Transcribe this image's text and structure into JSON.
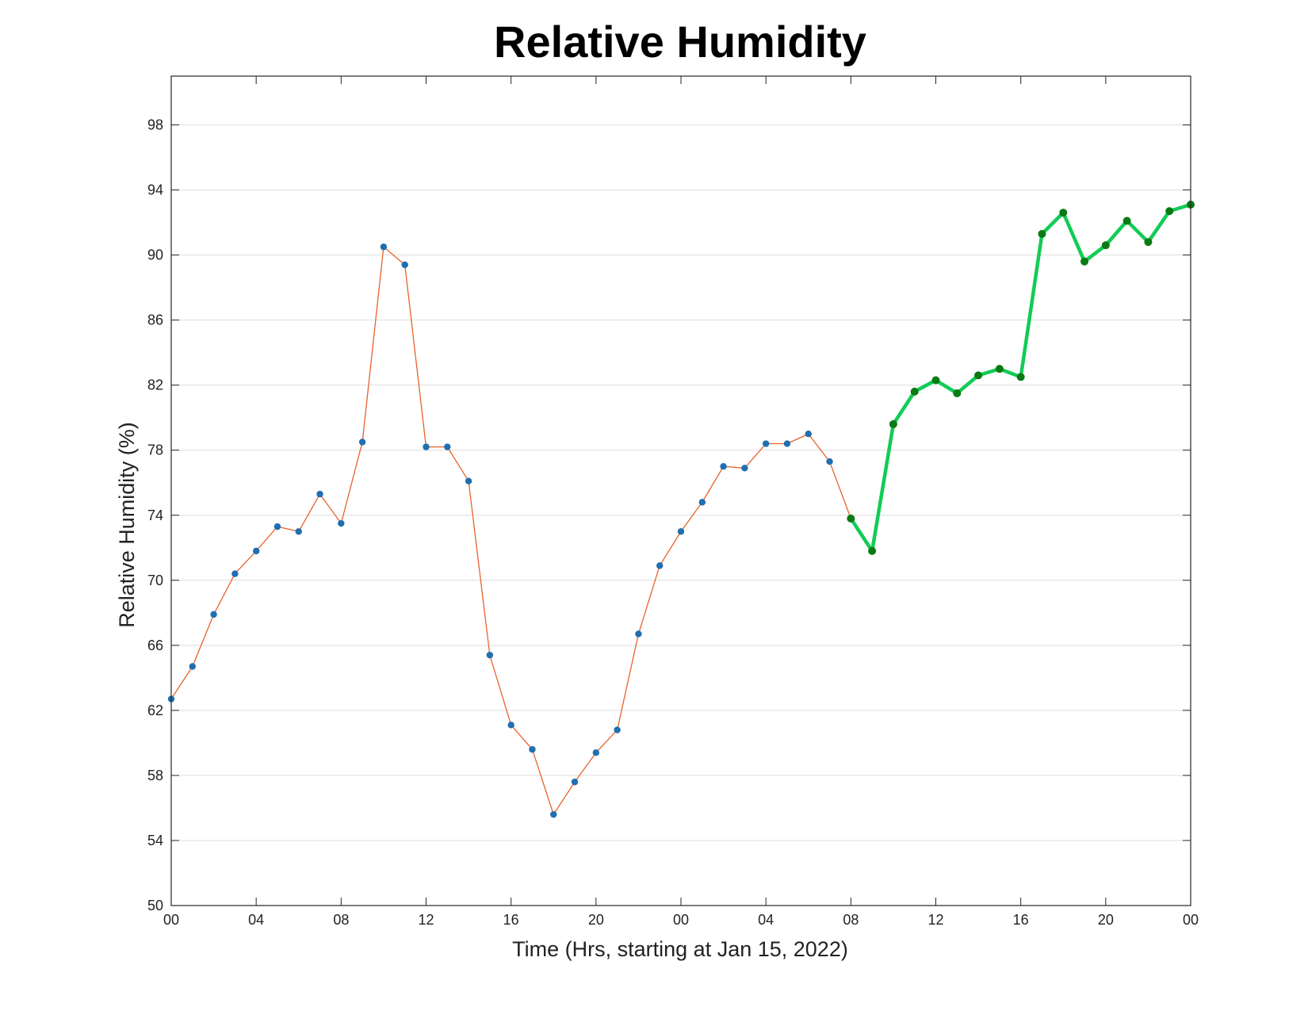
{
  "chart_data": {
    "type": "line",
    "title": "Relative Humidity",
    "xlabel": "Time (Hrs, starting at Jan 15, 2022)",
    "ylabel": "Relative Humidity (%)",
    "xlim": [
      "2022-01-15 00:00",
      "2022-01-17 00:00"
    ],
    "ylim": [
      50,
      101
    ],
    "yticks": [
      50,
      54,
      58,
      62,
      66,
      70,
      74,
      78,
      82,
      86,
      90,
      94,
      98
    ],
    "xticks": [
      {
        "time": "2022-01-15 00:00",
        "label": "00"
      },
      {
        "time": "2022-01-15 04:00",
        "label": "04"
      },
      {
        "time": "2022-01-15 08:00",
        "label": "08"
      },
      {
        "time": "2022-01-15 12:00",
        "label": "12"
      },
      {
        "time": "2022-01-15 16:00",
        "label": "16"
      },
      {
        "time": "2022-01-15 20:00",
        "label": "20"
      },
      {
        "time": "2022-01-16 00:00",
        "label": "00"
      },
      {
        "time": "2022-01-16 04:00",
        "label": "04"
      },
      {
        "time": "2022-01-16 08:00",
        "label": "08"
      },
      {
        "time": "2022-01-16 12:00",
        "label": "12"
      },
      {
        "time": "2022-01-16 16:00",
        "label": "16"
      },
      {
        "time": "2022-01-16 20:00",
        "label": "20"
      },
      {
        "time": "2022-01-17 00:00",
        "label": "00"
      }
    ],
    "grid": "horizontal",
    "series": [
      {
        "line_color": "#e8622c",
        "marker_color": "#1f6fb2",
        "points": [
          {
            "time": "2022-01-15 00:00",
            "value": 62.7
          },
          {
            "time": "2022-01-15 01:00",
            "value": 64.7
          },
          {
            "time": "2022-01-15 02:00",
            "value": 67.9
          },
          {
            "time": "2022-01-15 03:00",
            "value": 70.4
          },
          {
            "time": "2022-01-15 04:00",
            "value": 71.8
          },
          {
            "time": "2022-01-15 05:00",
            "value": 73.3
          },
          {
            "time": "2022-01-15 06:00",
            "value": 73.0
          },
          {
            "time": "2022-01-15 07:00",
            "value": 75.3
          },
          {
            "time": "2022-01-15 08:00",
            "value": 73.5
          },
          {
            "time": "2022-01-15 09:00",
            "value": 78.5
          },
          {
            "time": "2022-01-15 10:00",
            "value": 90.5
          },
          {
            "time": "2022-01-15 11:00",
            "value": 89.4
          },
          {
            "time": "2022-01-15 12:00",
            "value": 78.2
          },
          {
            "time": "2022-01-15 13:00",
            "value": 78.2
          },
          {
            "time": "2022-01-15 14:00",
            "value": 76.1
          },
          {
            "time": "2022-01-15 15:00",
            "value": 65.4
          },
          {
            "time": "2022-01-15 16:00",
            "value": 61.1
          },
          {
            "time": "2022-01-15 17:00",
            "value": 59.6
          },
          {
            "time": "2022-01-15 18:00",
            "value": 55.6
          },
          {
            "time": "2022-01-15 19:00",
            "value": 57.6
          },
          {
            "time": "2022-01-15 20:00",
            "value": 59.4
          },
          {
            "time": "2022-01-15 21:00",
            "value": 60.8
          },
          {
            "time": "2022-01-15 22:00",
            "value": 66.7
          },
          {
            "time": "2022-01-15 23:00",
            "value": 70.9
          },
          {
            "time": "2022-01-16 00:00",
            "value": 73.0
          },
          {
            "time": "2022-01-16 01:00",
            "value": 74.8
          },
          {
            "time": "2022-01-16 02:00",
            "value": 77.0
          },
          {
            "time": "2022-01-16 03:00",
            "value": 76.9
          },
          {
            "time": "2022-01-16 04:00",
            "value": 78.4
          },
          {
            "time": "2022-01-16 05:00",
            "value": 78.4
          },
          {
            "time": "2022-01-16 06:00",
            "value": 79.0
          },
          {
            "time": "2022-01-16 07:00",
            "value": 77.3
          },
          {
            "time": "2022-01-16 08:00",
            "value": 73.8
          }
        ]
      },
      {
        "line_color": "#11cc55",
        "marker_color": "#0a7a14",
        "points": [
          {
            "time": "2022-01-16 08:00",
            "value": 73.8
          },
          {
            "time": "2022-01-16 09:00",
            "value": 71.8
          },
          {
            "time": "2022-01-16 10:00",
            "value": 79.6
          },
          {
            "time": "2022-01-16 11:00",
            "value": 81.6
          },
          {
            "time": "2022-01-16 12:00",
            "value": 82.3
          },
          {
            "time": "2022-01-16 13:00",
            "value": 81.5
          },
          {
            "time": "2022-01-16 14:00",
            "value": 82.6
          },
          {
            "time": "2022-01-16 15:00",
            "value": 83.0
          },
          {
            "time": "2022-01-16 16:00",
            "value": 82.5
          },
          {
            "time": "2022-01-16 17:00",
            "value": 91.3
          },
          {
            "time": "2022-01-16 18:00",
            "value": 92.6
          },
          {
            "time": "2022-01-16 19:00",
            "value": 89.6
          },
          {
            "time": "2022-01-16 20:00",
            "value": 90.6
          },
          {
            "time": "2022-01-16 21:00",
            "value": 92.1
          },
          {
            "time": "2022-01-16 22:00",
            "value": 90.8
          },
          {
            "time": "2022-01-16 23:00",
            "value": 92.7
          },
          {
            "time": "2022-01-17 00:00",
            "value": 93.1
          }
        ]
      }
    ]
  }
}
